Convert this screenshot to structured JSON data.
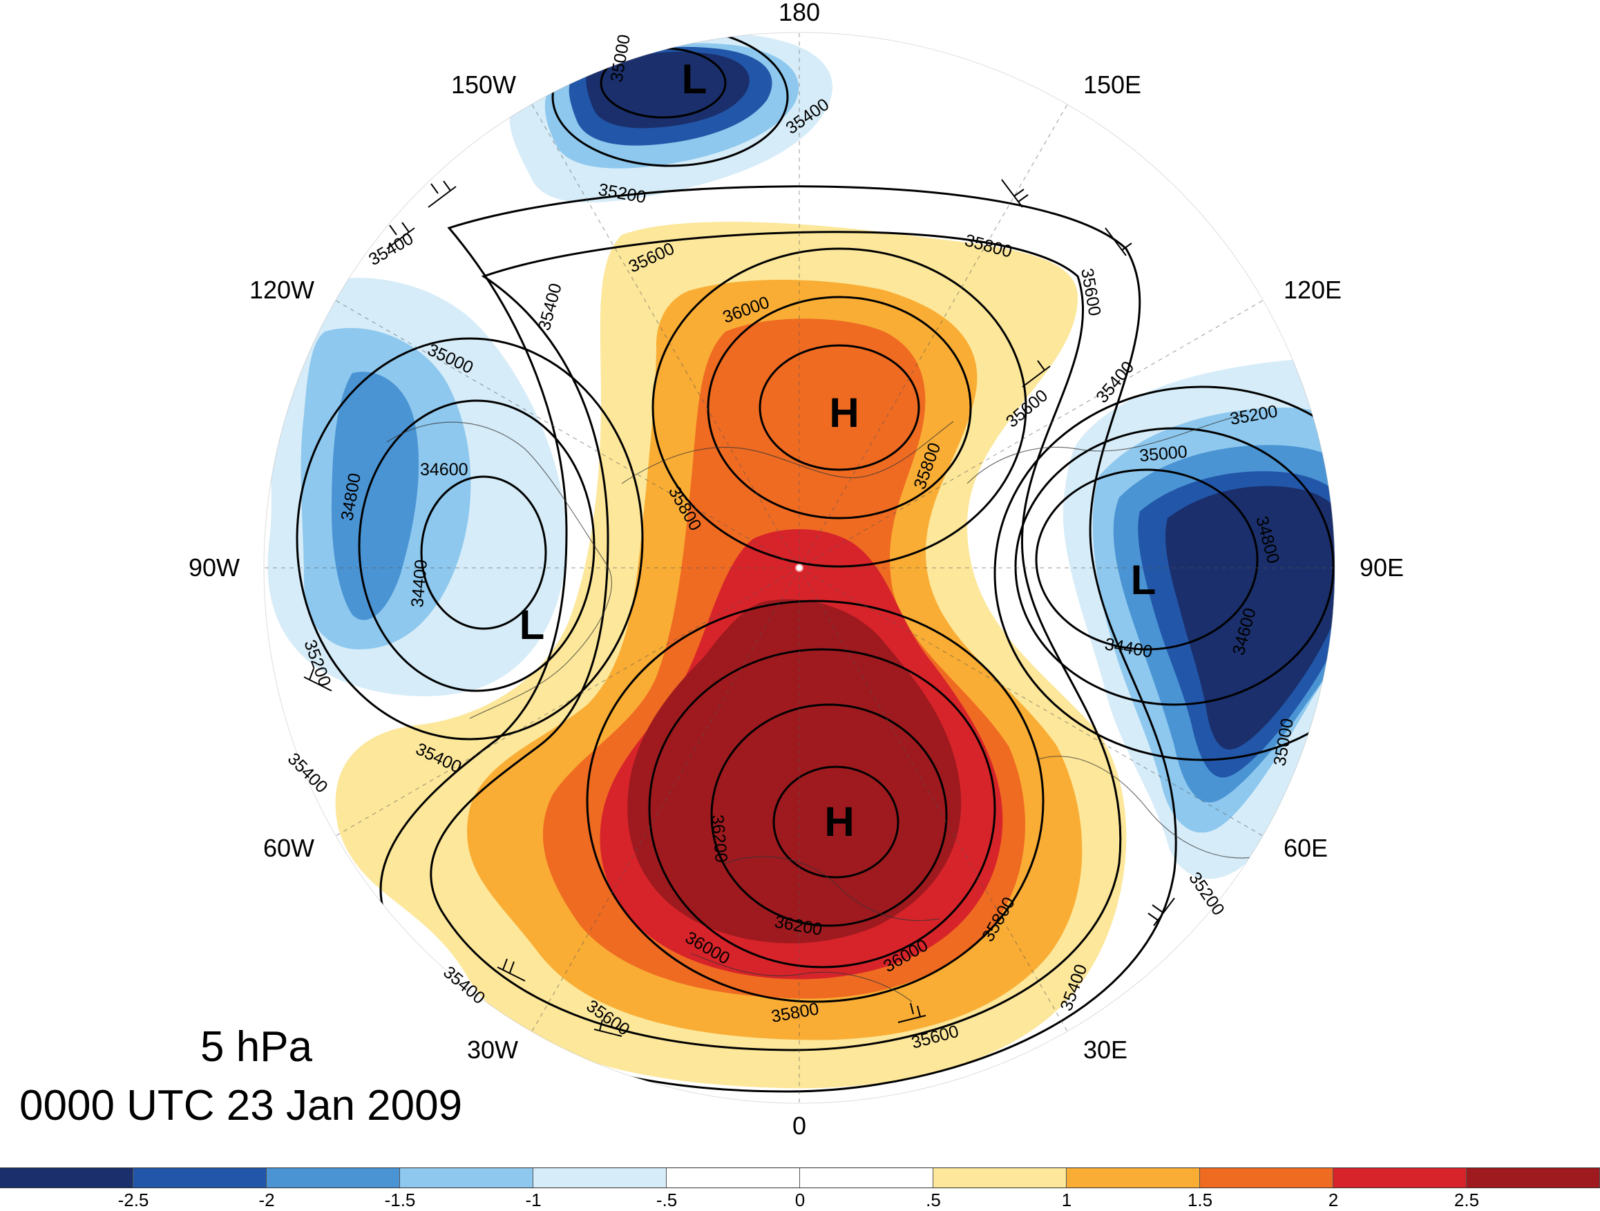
{
  "map": {
    "level": "5 hPa",
    "datetime": "0000 UTC 23 Jan 2009",
    "longitude_labels": [
      "180",
      "150E",
      "120E",
      "90E",
      "60E",
      "30E",
      "0",
      "30W",
      "60W",
      "90W",
      "120W",
      "150W"
    ],
    "centers": [
      {
        "type": "L"
      },
      {
        "type": "L"
      },
      {
        "type": "L"
      },
      {
        "type": "H"
      },
      {
        "type": "H"
      }
    ],
    "contour_labels": [
      "35000",
      "35400",
      "35200",
      "35400",
      "35600",
      "35400",
      "35800",
      "35600",
      "36000",
      "35000",
      "34600",
      "34800",
      "34400",
      "35200",
      "35600",
      "35400",
      "35200",
      "35000",
      "34800",
      "34600",
      "34400",
      "35000",
      "35800",
      "35800",
      "35400",
      "35400",
      "36200",
      "36200",
      "36000",
      "36000",
      "35800",
      "35800",
      "35600",
      "35600",
      "35400",
      "35400",
      "35200"
    ]
  },
  "colorbar": {
    "colors": [
      "#1a2f6b",
      "#2256a8",
      "#4a94d4",
      "#8ec8ee",
      "#d6ecf8",
      "#ffffff",
      "#ffffff",
      "#fce79a",
      "#f9ad35",
      "#ef6b22",
      "#d7242a",
      "#9e1a1f"
    ],
    "tick_labels": [
      "-2.5",
      "-2",
      "-1.5",
      "-1",
      "-.5",
      "0",
      ".5",
      "1",
      "1.5",
      "2",
      "2.5"
    ]
  }
}
